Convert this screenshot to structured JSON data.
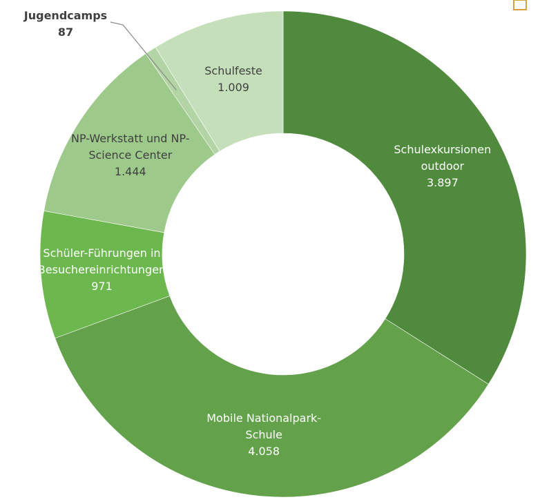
{
  "chart_data": {
    "type": "donut",
    "categories": [
      "Schulexkursionen outdoor",
      "Mobile Nationalpark-Schule",
      "Schüler-Führungen in Besuchereinrichtungen",
      "NP-Werkstatt und NP-Science Center",
      "Jugendcamps",
      "Schulfeste"
    ],
    "values": [
      3897,
      4058,
      971,
      1444,
      87,
      1009
    ],
    "value_labels": [
      "3.897",
      "4.058",
      "971",
      "1.444",
      "87",
      "1.009"
    ],
    "colors": [
      "#4f8a3d",
      "#63a24b",
      "#6cb74e",
      "#9dc98b",
      "#b3d5a6",
      "#c4dfb9"
    ]
  }
}
